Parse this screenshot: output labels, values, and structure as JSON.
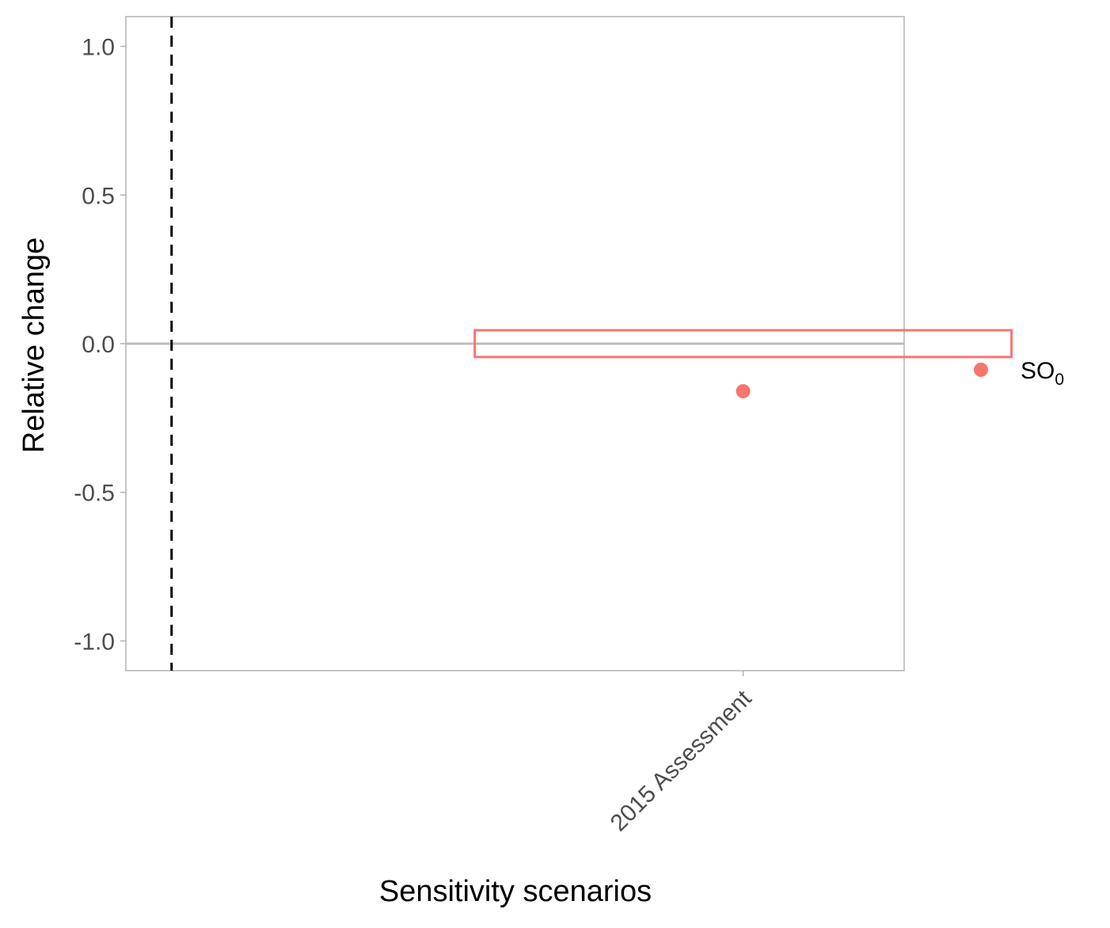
{
  "chart_data": {
    "type": "scatter",
    "xlabel": "Sensitivity scenarios",
    "ylabel": "Relative change",
    "categories": [
      "2015 Assessment"
    ],
    "ylim": [
      -1.1,
      1.1
    ],
    "yticks": [
      1.0,
      0.5,
      0.0,
      -0.5,
      -1.0
    ],
    "ytick_labels": [
      "1.0",
      "0.5",
      "0.0",
      "-0.5",
      "-1.0"
    ],
    "grid": false,
    "reference_line_y": 0.0,
    "reference_vline_x": 0.5,
    "band": {
      "x_from": 0.5,
      "x_to": 1.5,
      "y_from": -0.045,
      "y_to": 0.045
    },
    "series": [
      {
        "name_main": "SO",
        "name_sub": "0",
        "x": [
          "2015 Assessment"
        ],
        "values": [
          -0.16
        ]
      }
    ],
    "legend_position": "right"
  },
  "colors": {
    "series": "#F8766D",
    "panel_border": "#B3B3B3",
    "reference_line": "#BEBEBE",
    "vline": "#000000",
    "tick_text": "#4D4D4D"
  }
}
